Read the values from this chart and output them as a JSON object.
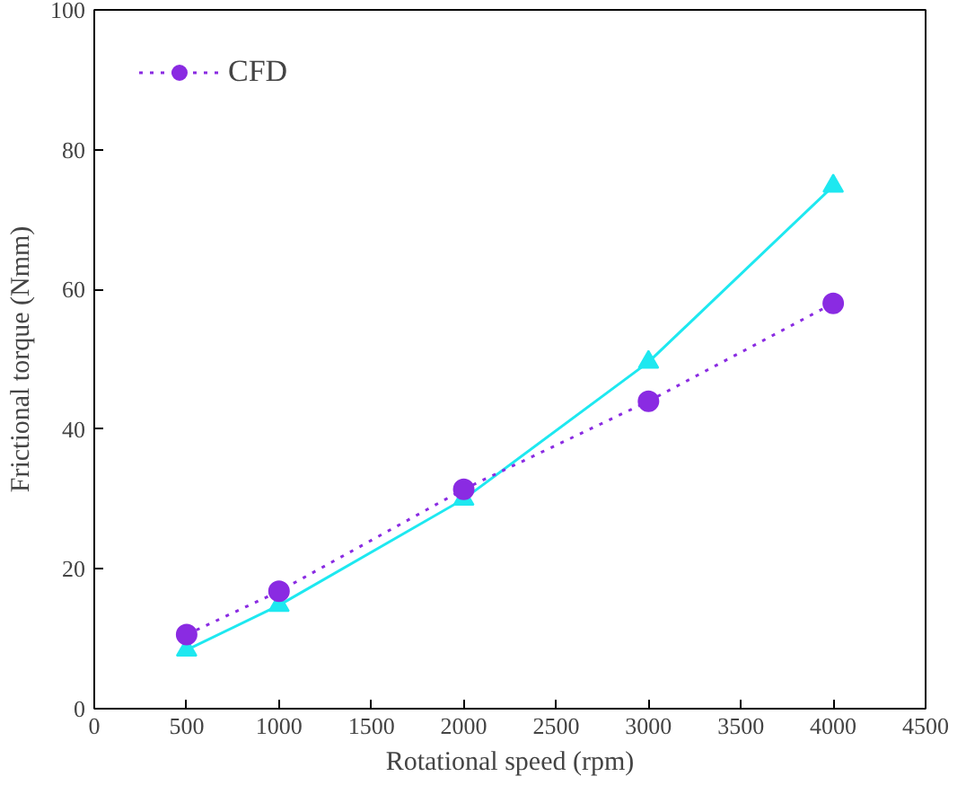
{
  "chart_data": {
    "type": "line",
    "xlabel": "Rotational speed (rpm)",
    "ylabel": "Frictional torque (Nmm)",
    "x": [
      500,
      1000,
      2000,
      3000,
      4000
    ],
    "series": [
      {
        "color": "#1ee8f0",
        "values": [
          8.4,
          14.8,
          30,
          49.6,
          74.8
        ],
        "marker": "triangle",
        "line_style": "solid"
      },
      {
        "name": "CFD",
        "color": "#8a2be2",
        "values": [
          10.6,
          16.8,
          31.4,
          44,
          58
        ],
        "marker": "circle",
        "line_style": "dotted"
      }
    ],
    "xlim": [
      0,
      4500
    ],
    "xticks": [
      0,
      500,
      1000,
      1500,
      2000,
      2500,
      3000,
      3500,
      4000,
      4500
    ],
    "ylim": [
      0,
      100
    ],
    "yticks": [
      0,
      20,
      40,
      60,
      80,
      100
    ],
    "grid": false,
    "legend": "top left"
  }
}
